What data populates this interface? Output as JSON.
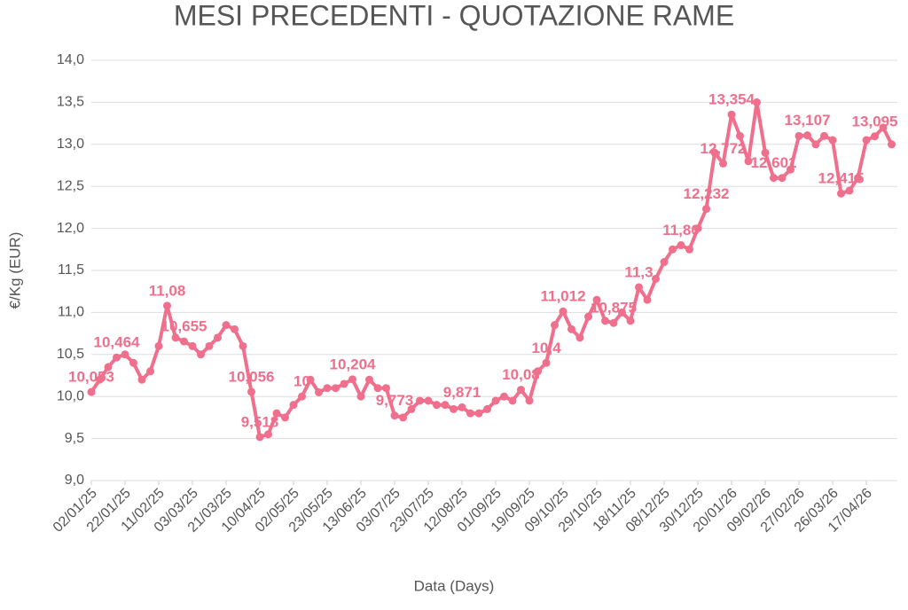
{
  "chart_data": {
    "type": "line",
    "title": "MESI PRECEDENTI - QUOTAZIONE RAME",
    "x_label": "Data (Days)",
    "y_label": "€/Kg (EUR)",
    "color": "#ef6f8c",
    "grid": true,
    "ylim": [
      9,
      14
    ],
    "yticks": [
      {
        "value": 9,
        "label": "9,0"
      },
      {
        "value": 9.5,
        "label": "9,5"
      },
      {
        "value": 10,
        "label": "10,0"
      },
      {
        "value": 10.5,
        "label": "10,5"
      },
      {
        "value": 11,
        "label": "11,0"
      },
      {
        "value": 11.5,
        "label": "11,5"
      },
      {
        "value": 12,
        "label": "12,0"
      },
      {
        "value": 12.5,
        "label": "12,5"
      },
      {
        "value": 13,
        "label": "13,0"
      },
      {
        "value": 13.5,
        "label": "13,5"
      },
      {
        "value": 14,
        "label": "14,0"
      }
    ],
    "categories": [
      "02/01/25",
      null,
      null,
      null,
      "22/01/25",
      null,
      null,
      null,
      "11/02/25",
      null,
      null,
      null,
      "03/03/25",
      null,
      null,
      null,
      "21/03/25",
      null,
      null,
      null,
      "10/04/25",
      null,
      null,
      null,
      "02/05/25",
      null,
      null,
      null,
      "23/05/25",
      null,
      null,
      null,
      "13/06/25",
      null,
      null,
      null,
      "03/07/25",
      null,
      null,
      null,
      "23/07/25",
      null,
      null,
      null,
      "12/08/25",
      null,
      null,
      null,
      "01/09/25",
      null,
      null,
      null,
      "19/09/25",
      null,
      null,
      null,
      "09/10/25",
      null,
      null,
      null,
      "29/10/25",
      null,
      null,
      null,
      "18/11/25",
      null,
      null,
      null,
      "08/12/25",
      null,
      null,
      null,
      "30/12/25",
      null,
      null,
      null,
      "20/01/26",
      null,
      null,
      null,
      "09/02/26",
      null,
      null,
      null,
      "27/02/26",
      null,
      null,
      null,
      "26/03/26",
      null,
      null,
      null,
      "17/04/26",
      null,
      null,
      null
    ],
    "values": [
      10.053,
      10.2,
      10.35,
      10.464,
      10.5,
      10.4,
      10.2,
      10.3,
      10.6,
      11.08,
      10.7,
      10.655,
      10.6,
      10.5,
      10.6,
      10.7,
      10.85,
      10.8,
      10.6,
      10.056,
      9.518,
      9.55,
      9.8,
      9.75,
      9.9,
      10,
      10.2,
      10.05,
      10.1,
      10.1,
      10.15,
      10.204,
      10,
      10.2,
      10.1,
      10.1,
      9.773,
      9.75,
      9.85,
      9.95,
      9.95,
      9.9,
      9.9,
      9.85,
      9.871,
      9.8,
      9.8,
      9.85,
      9.95,
      10,
      9.95,
      10.08,
      9.95,
      10.3,
      10.4,
      10.85,
      11.012,
      10.8,
      10.7,
      10.95,
      11.15,
      10.9,
      10.875,
      11,
      10.9,
      11.3,
      11.15,
      11.4,
      11.6,
      11.75,
      11.8,
      11.75,
      12,
      12.232,
      12.9,
      12.772,
      13.354,
      13.1,
      12.8,
      13.5,
      12.9,
      12.601,
      12.6,
      12.7,
      13.1,
      13.107,
      13,
      13.1,
      13.05,
      12.415,
      12.45,
      12.6,
      13.05,
      13.095,
      13.2,
      13
    ],
    "value_labels": [
      "10,053",
      null,
      null,
      "10,464",
      null,
      null,
      null,
      null,
      null,
      "11,08",
      null,
      "10,655",
      null,
      null,
      null,
      null,
      null,
      null,
      null,
      "10,056",
      "9,518",
      null,
      null,
      null,
      null,
      "10",
      null,
      null,
      null,
      null,
      null,
      "10,204",
      null,
      null,
      null,
      null,
      "9,773",
      null,
      null,
      null,
      null,
      null,
      null,
      null,
      "9,871",
      null,
      null,
      null,
      null,
      null,
      null,
      "10,08",
      null,
      null,
      "10,4",
      null,
      "11,012",
      null,
      null,
      null,
      null,
      null,
      "10,875",
      null,
      null,
      "11,3",
      null,
      null,
      null,
      null,
      "11,80",
      null,
      null,
      "12,232",
      null,
      "12,772",
      "13,354",
      null,
      null,
      null,
      null,
      "12,601",
      null,
      null,
      null,
      "13,107",
      null,
      null,
      null,
      "12,415",
      null,
      null,
      null,
      "13,095",
      null,
      null
    ]
  }
}
